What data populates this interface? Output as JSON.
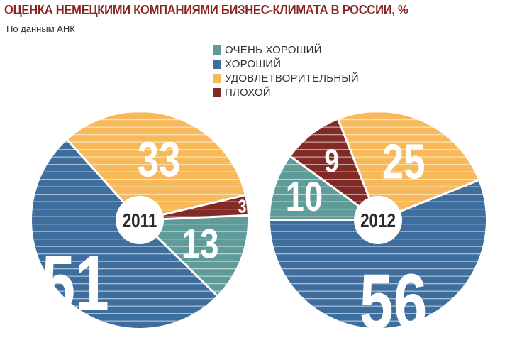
{
  "title": "ОЦЕНКА НЕМЕЦКИМИ КОМПАНИЯМИ БИЗНЕС-КЛИМАТА В РОССИИ, %",
  "subtitle": "По данным АНК",
  "colors": {
    "very_good": "#5e9b99",
    "good": "#3d6e9e",
    "satisfactory": "#f7b95a",
    "bad": "#812a26"
  },
  "chart_data": {
    "type": "pie",
    "title": "ОЦЕНКА НЕМЕЦКИМИ КОМПАНИЯМИ БИЗНЕС-КЛИМАТА В РОССИИ, %",
    "subtitle": "По данным АНК",
    "legend_position": "top-center",
    "categories": [
      "ОЧЕНЬ ХОРОШИЙ",
      "ХОРОШИЙ",
      "УДОВЛЕТВОРИТЕЛЬНЫЙ",
      "ПЛОХОЙ"
    ],
    "series": [
      {
        "name": "2011",
        "values": [
          13,
          51,
          33,
          3
        ]
      },
      {
        "name": "2012",
        "values": [
          10,
          56,
          25,
          9
        ]
      }
    ]
  }
}
